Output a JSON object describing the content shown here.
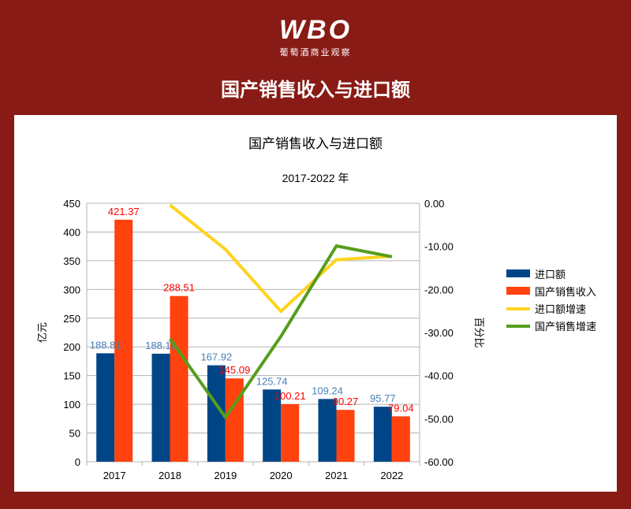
{
  "header": {
    "logo_text": "WBO",
    "logo_subtitle": "葡萄酒商业观察",
    "page_title": "国产销售收入与进口额"
  },
  "chart_data": {
    "type": "bar",
    "title": "国产销售收入与进口额",
    "subtitle": "2017-2022 年",
    "categories": [
      "2017",
      "2018",
      "2019",
      "2020",
      "2021",
      "2022"
    ],
    "ylabel": "亿元",
    "y2label": "百分比",
    "ylim": [
      0,
      450
    ],
    "y2lim": [
      -60,
      0
    ],
    "yticks": [
      "0",
      "50",
      "100",
      "150",
      "200",
      "250",
      "300",
      "350",
      "400",
      "450"
    ],
    "y2ticks": [
      "0.00",
      "-10.00",
      "-20.00",
      "-30.00",
      "-40.00",
      "-50.00",
      "-60.00"
    ],
    "grid": true,
    "legend_position": "right",
    "series": [
      {
        "name": "进口额",
        "kind": "bar",
        "axis": "left",
        "color": "#004586",
        "label_color": "#4a7fb5",
        "values": [
          188.81,
          188.1,
          167.92,
          125.74,
          109.24,
          95.77
        ],
        "labels": [
          "188.81",
          "188.10",
          "167.92",
          "125.74",
          "109.24",
          "95.77"
        ]
      },
      {
        "name": "国产销售收入",
        "kind": "bar",
        "axis": "left",
        "color": "#ff420e",
        "label_color": "#ff0000",
        "values": [
          421.37,
          288.51,
          145.09,
          100.21,
          90.27,
          79.04
        ],
        "labels": [
          "421.37",
          "288.51",
          "145.09",
          "100.21",
          "90.27",
          "79.04"
        ]
      },
      {
        "name": "进口额增速",
        "kind": "line",
        "axis": "right",
        "color": "#ffd320",
        "values": [
          null,
          -0.4,
          -10.7,
          -25.1,
          -13.1,
          -12.3
        ]
      },
      {
        "name": "国产销售增速",
        "kind": "line",
        "axis": "right",
        "color": "#579d1c",
        "values": [
          null,
          -31.5,
          -49.7,
          -30.9,
          -9.9,
          -12.4
        ]
      }
    ]
  }
}
